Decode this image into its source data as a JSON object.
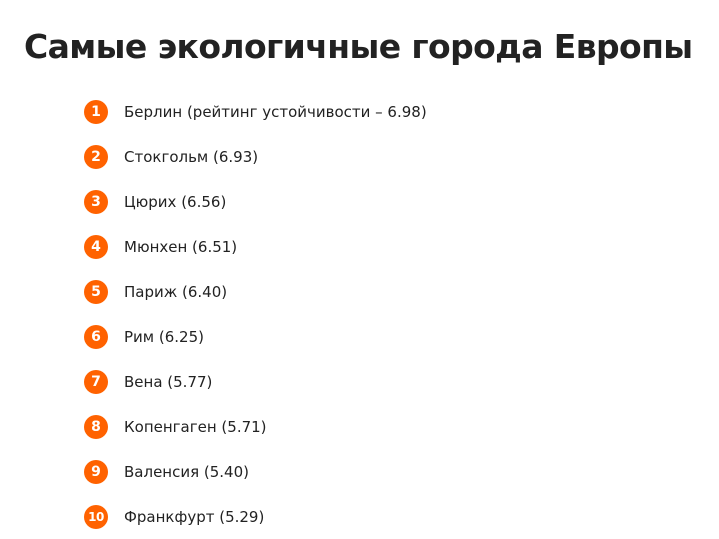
{
  "title": "Самые экологичные города Европы",
  "accent_color": "#ff6200",
  "items": [
    {
      "rank": "1",
      "text": "Берлин (рейтинг устойчивости – 6.98)"
    },
    {
      "rank": "2",
      "text": "Стокгольм (6.93)"
    },
    {
      "rank": "3",
      "text": "Цюрих (6.56)"
    },
    {
      "rank": "4",
      "text": "Мюнхен (6.51)"
    },
    {
      "rank": "5",
      "text": "Париж (6.40)"
    },
    {
      "rank": "6",
      "text": "Рим (6.25)"
    },
    {
      "rank": "7",
      "text": "Вена (5.77)"
    },
    {
      "rank": "8",
      "text": "Копенгаген (5.71)"
    },
    {
      "rank": "9",
      "text": "Валенсия (5.40)"
    },
    {
      "rank": "10",
      "text": "Франкфурт (5.29)"
    }
  ]
}
